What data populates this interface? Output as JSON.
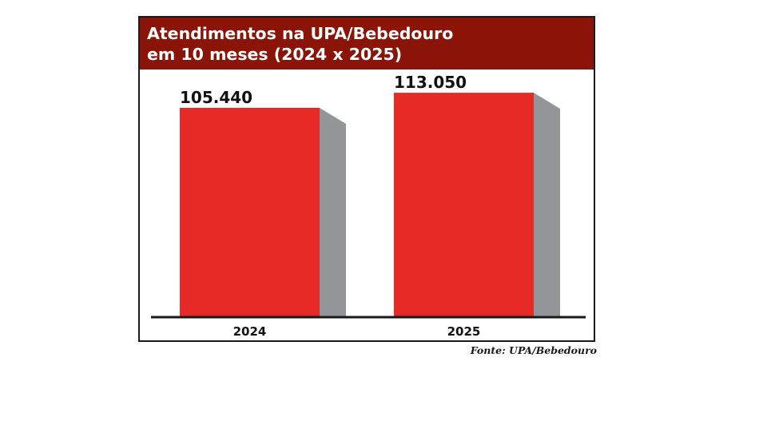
{
  "chart_data": {
    "type": "bar",
    "title_lines": [
      "Atendimentos na UPA/Bebedouro",
      "em 10 meses (2024 x 2025)"
    ],
    "categories": [
      "2024",
      "2025"
    ],
    "values": [
      105440,
      113050
    ],
    "value_labels": [
      "105.440",
      "113.050"
    ],
    "colors": {
      "bar": "#e82a27",
      "side": "#949598",
      "header": "#8a1408",
      "axis": "#1a1a1a"
    },
    "legend": "none",
    "grid": false
  },
  "source": "Fonte: UPA/Bebedouro"
}
